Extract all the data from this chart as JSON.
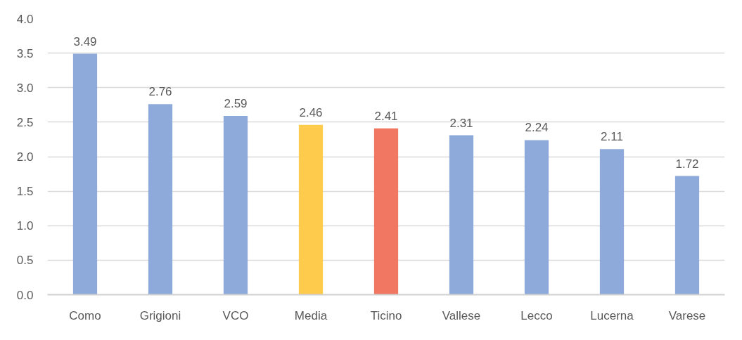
{
  "chart_data": {
    "type": "bar",
    "categories": [
      "Como",
      "Grigioni",
      "VCO",
      "Media",
      "Ticino",
      "Vallese",
      "Lecco",
      "Lucerna",
      "Varese"
    ],
    "values": [
      3.49,
      2.76,
      2.59,
      2.46,
      2.41,
      2.31,
      2.24,
      2.11,
      1.72
    ],
    "colors": [
      "#8eaadb",
      "#8eaadb",
      "#8eaadb",
      "#ffcb4c",
      "#f27762",
      "#8eaadb",
      "#8eaadb",
      "#8eaadb",
      "#8eaadb"
    ],
    "ylim": [
      0,
      4
    ],
    "yticks": [
      {
        "value": 0,
        "label": "0.0"
      },
      {
        "value": 0.5,
        "label": "0.5"
      },
      {
        "value": 1,
        "label": "1.0"
      },
      {
        "value": 1.5,
        "label": "1.5"
      },
      {
        "value": 2,
        "label": "2.0"
      },
      {
        "value": 2.5,
        "label": "2.5"
      },
      {
        "value": 3,
        "label": "3.0"
      },
      {
        "value": 3.5,
        "label": "3.5"
      },
      {
        "value": 4,
        "label": "4.0"
      }
    ],
    "grid": "y",
    "data_labels": true
  }
}
